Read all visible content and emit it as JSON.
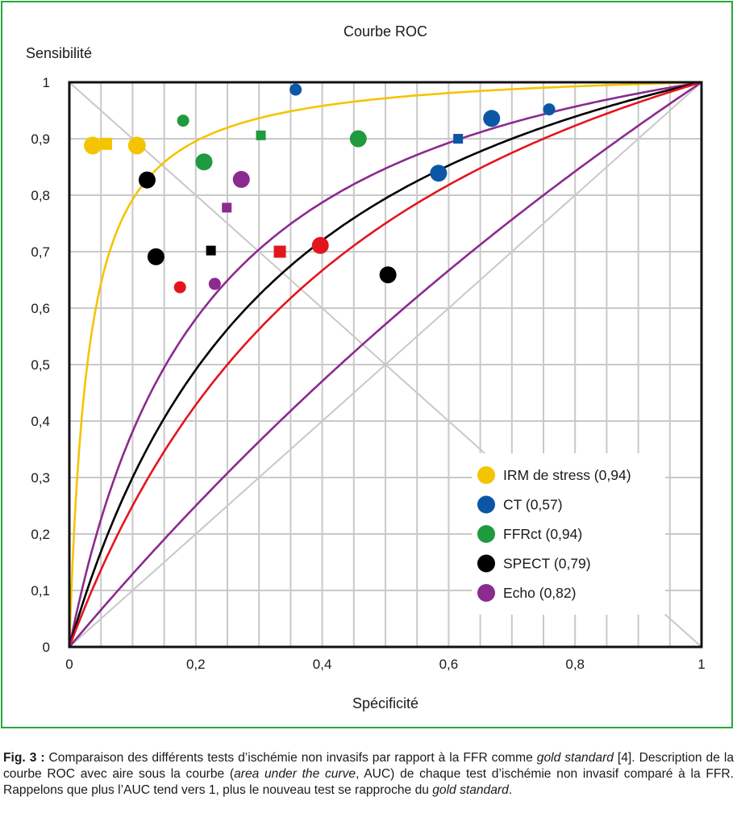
{
  "chart_data": {
    "type": "scatter",
    "title": "Courbe ROC",
    "ylabel": "Sensibilité",
    "xlabel": "Spécificité",
    "xlim": [
      0,
      1
    ],
    "ylim": [
      0,
      1
    ],
    "grid": true,
    "legend_position": "bottom-right",
    "x_ticks": [
      "0",
      "0,2",
      "0,4",
      "0,6",
      "0,8",
      "1"
    ],
    "y_ticks": [
      "0",
      "0,1",
      "0,2",
      "0,3",
      "0,4",
      "0,5",
      "0,6",
      "0,7",
      "0,8",
      "0,9",
      "1"
    ],
    "series": [
      {
        "name": "IRM de stress (0,94)",
        "color": "#f5c400",
        "auc": 0.94,
        "points": [
          {
            "x": 0.037,
            "y": 0.888,
            "size": "large",
            "shape": "circle"
          },
          {
            "x": 0.107,
            "y": 0.888,
            "size": "large",
            "shape": "circle"
          },
          {
            "x": 0.058,
            "y": 0.891,
            "size": "medium",
            "shape": "square"
          }
        ]
      },
      {
        "name": "CT (0,57)",
        "color": "#0b57a6",
        "auc": 0.57,
        "points": [
          {
            "x": 0.358,
            "y": 0.987,
            "size": "small",
            "shape": "circle"
          },
          {
            "x": 0.584,
            "y": 0.839,
            "size": "medium",
            "shape": "circle"
          },
          {
            "x": 0.668,
            "y": 0.936,
            "size": "medium",
            "shape": "circle"
          },
          {
            "x": 0.759,
            "y": 0.952,
            "size": "small",
            "shape": "circle"
          },
          {
            "x": 0.615,
            "y": 0.9,
            "size": "small",
            "shape": "square"
          }
        ]
      },
      {
        "name": "FFRct (0,94)",
        "color": "#1f9a3e",
        "auc": 0.94,
        "points": [
          {
            "x": 0.18,
            "y": 0.932,
            "size": "small",
            "shape": "circle"
          },
          {
            "x": 0.213,
            "y": 0.859,
            "size": "medium",
            "shape": "circle"
          },
          {
            "x": 0.457,
            "y": 0.9,
            "size": "medium",
            "shape": "circle"
          },
          {
            "x": 0.303,
            "y": 0.906,
            "size": "small",
            "shape": "square"
          }
        ]
      },
      {
        "name": "SPECT (0,79)",
        "color": "#000000",
        "auc": 0.79,
        "points": [
          {
            "x": 0.123,
            "y": 0.827,
            "size": "medium",
            "shape": "circle"
          },
          {
            "x": 0.137,
            "y": 0.691,
            "size": "medium",
            "shape": "circle"
          },
          {
            "x": 0.504,
            "y": 0.659,
            "size": "medium",
            "shape": "circle"
          },
          {
            "x": 0.224,
            "y": 0.702,
            "size": "small",
            "shape": "square"
          }
        ]
      },
      {
        "name": "Echo (0,82)",
        "color": "#8b2a8f",
        "auc": 0.82,
        "points": [
          {
            "x": 0.272,
            "y": 0.828,
            "size": "medium",
            "shape": "circle"
          },
          {
            "x": 0.23,
            "y": 0.643,
            "size": "small",
            "shape": "circle"
          },
          {
            "x": 0.249,
            "y": 0.778,
            "size": "small",
            "shape": "square"
          }
        ]
      },
      {
        "color": "#e3161e",
        "points": [
          {
            "x": 0.175,
            "y": 0.637,
            "size": "small",
            "shape": "circle"
          },
          {
            "x": 0.397,
            "y": 0.711,
            "size": "medium",
            "shape": "circle"
          },
          {
            "x": 0.333,
            "y": 0.7,
            "size": "medium",
            "shape": "square"
          }
        ]
      }
    ],
    "curves": [
      {
        "color": "#f5c400",
        "k": 0.03
      },
      {
        "color": "#8b2a8f",
        "k": 0.22
      },
      {
        "color": "#000000",
        "k": 0.35
      },
      {
        "color": "#e3161e",
        "k": 0.5
      },
      {
        "color": "#8b2a8f",
        "k": 3.0
      }
    ],
    "diagonal_color": "#c8c8c8",
    "legend_marker_color_on_line": "#1a1a1a"
  },
  "caption": {
    "label": "Fig. 3 :",
    "part1": " Comparaison des différents tests d’ischémie non invasifs par rapport à la FFR comme ",
    "gold1": "gold standard",
    "part2": " [4]. Description de la courbe ROC avec aire sous la courbe (",
    "auc_en": "area under the curve",
    "part3": ", AUC) de chaque test d’ischémie non invasif comparé à la FFR. Rappelons que plus l’AUC tend vers 1, plus le nouveau test se rapproche du ",
    "gold2": "gold standard",
    "part4": "."
  }
}
